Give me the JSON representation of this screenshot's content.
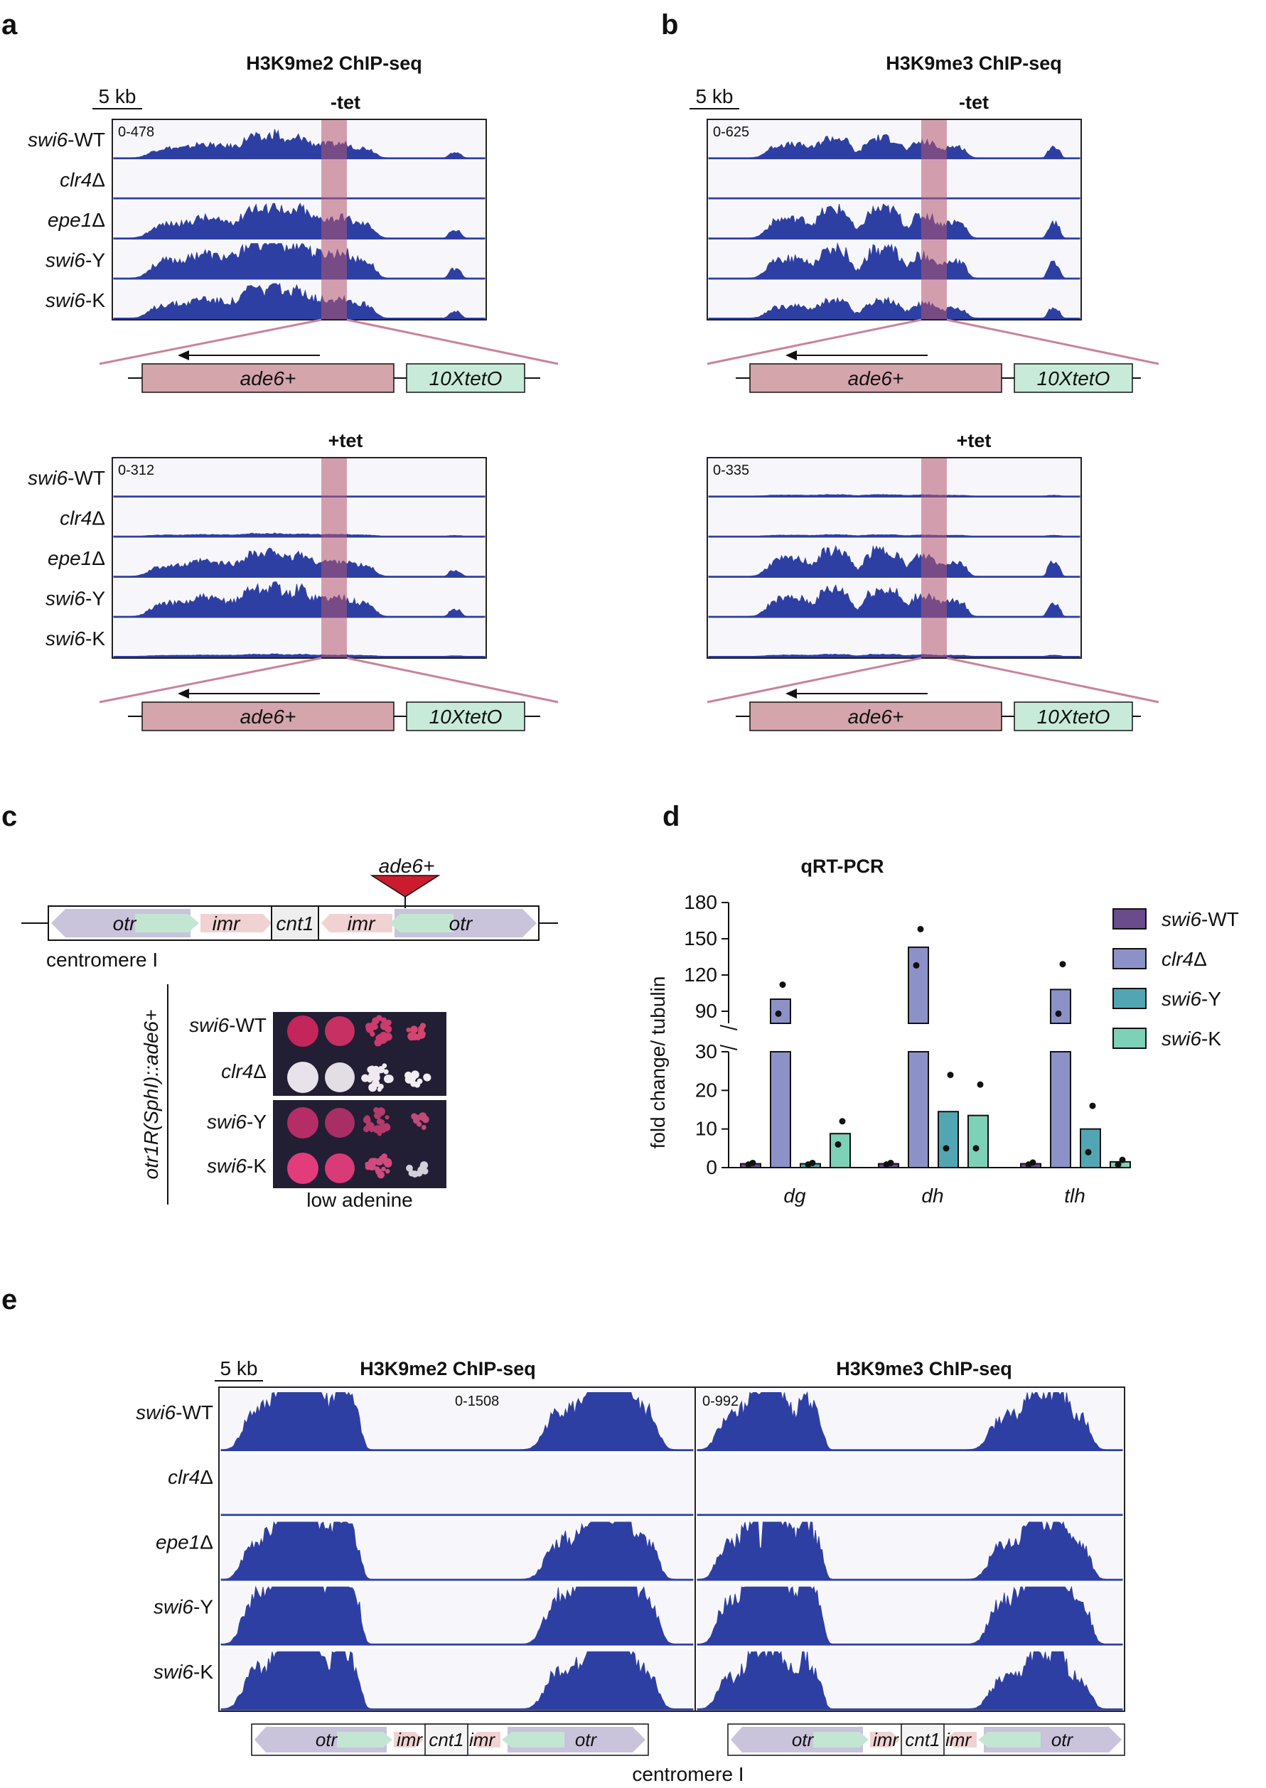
{
  "panels": {
    "a": {
      "letter": "a",
      "title": "H3K9me2 ChIP-seq",
      "scale": "5 kb",
      "minus": {
        "cond": "-tet",
        "range": "0-478"
      },
      "plus": {
        "cond": "+tet",
        "range": "0-312"
      }
    },
    "b": {
      "letter": "b",
      "title": "H3K9me3 ChIP-seq",
      "scale": "5 kb",
      "minus": {
        "cond": "-tet",
        "range": "0-625"
      },
      "plus": {
        "cond": "+tet",
        "range": "0-335"
      }
    },
    "c": {
      "letter": "c",
      "insert": "ade6+",
      "chrom_caption": "centromere I",
      "vertical_label": "otr1R(SphI)::ade6+",
      "plate_caption": "low adenine",
      "strains": [
        "swi6-WT",
        "clr4Δ",
        "swi6-Y",
        "swi6-K"
      ]
    },
    "d": {
      "letter": "d"
    },
    "e": {
      "letter": "e",
      "scale": "5 kb",
      "left_title": "H3K9me2 ChIP-seq",
      "right_title": "H3K9me3 ChIP-seq",
      "left_range": "0-1508",
      "right_range": "0-992",
      "caption": "centromere I"
    }
  },
  "strain_labels": [
    "swi6-WT",
    "clr4Δ",
    "epe1Δ",
    "swi6-Y",
    "swi6-K"
  ],
  "reporter": {
    "gene": "ade6+",
    "operator": "10XtetO"
  },
  "cen_elements": [
    "otr",
    "imr",
    "cnt1",
    "imr",
    "otr"
  ],
  "colors": {
    "track": "#2e3fa3",
    "highlight": "#b5566f",
    "ade6_box": "#d4a5ab",
    "teto_box": "#c8ebd9",
    "otr": "#c9c3dc",
    "otr_arrow": "#c3e6d3",
    "imr": "#f0d2d2",
    "spot_red": "#d23b6c",
    "plate_bg": "#221e33"
  },
  "chart_data": {
    "type": "bar",
    "title": "qRT-PCR",
    "ylabel": "fold change/ tubulin",
    "categories": [
      "dg",
      "dh",
      "tlh"
    ],
    "axis_break": {
      "lower": [
        0,
        30
      ],
      "upper": [
        80,
        180
      ]
    },
    "yticks_lower": [
      0,
      10,
      20,
      30
    ],
    "yticks_upper": [
      90,
      120,
      150,
      180
    ],
    "legend_position": "right",
    "series": [
      {
        "name": "swi6-WT",
        "color": "#6a4b8c",
        "values": [
          1.0,
          1.0,
          1.0
        ],
        "points": [
          [
            0.8,
            1.2
          ],
          [
            0.8,
            1.2
          ],
          [
            0.8,
            1.3
          ]
        ]
      },
      {
        "name": "clr4Δ",
        "color": "#8c92c7",
        "values": [
          100,
          143,
          108
        ],
        "points": [
          [
            88,
            112
          ],
          [
            128,
            158
          ],
          [
            88,
            129
          ]
        ]
      },
      {
        "name": "swi6-Y",
        "color": "#52a6b3",
        "values": [
          1.0,
          14.5,
          10
        ],
        "points": [
          [
            0.8,
            1.2
          ],
          [
            5,
            24
          ],
          [
            4,
            16
          ]
        ]
      },
      {
        "name": "swi6-K",
        "color": "#7dd1b7",
        "values": [
          8.8,
          13.5,
          1.5
        ],
        "points": [
          [
            6,
            12
          ],
          [
            5,
            21.5
          ],
          [
            0.8,
            2
          ]
        ]
      }
    ]
  }
}
